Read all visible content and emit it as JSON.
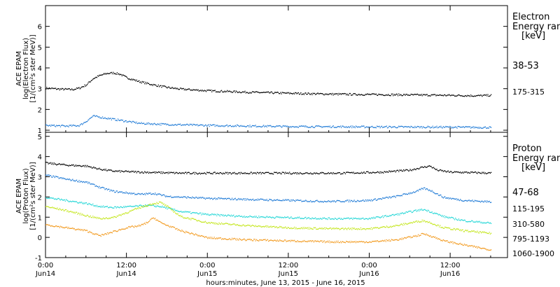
{
  "chart_data": {
    "type": "scatter",
    "x_axis": {
      "label": "hours:minutes, June 13, 2015 - June 16, 2015",
      "tick_hours": [
        0,
        12,
        24,
        36,
        48,
        60
      ],
      "tick_times": [
        "0:00",
        "12:00",
        "0:00",
        "12:00",
        "0:00",
        "12:00"
      ],
      "tick_dates": [
        "Jun14",
        "Jun14",
        "Jun15",
        "Jun15",
        "Jun16",
        "Jun16"
      ],
      "range_hours": [
        0,
        68.5
      ]
    },
    "panels": [
      {
        "id": "electron",
        "ylabel": [
          "ACE EPAM",
          "log(Electron Flux)",
          "[1/(cm²s ster MeV)]"
        ],
        "ylim": [
          0.9,
          7.0
        ],
        "yticks": [
          1,
          2,
          3,
          4,
          5,
          6
        ],
        "legend_title": [
          "Electron",
          "Energy ran",
          "[keV]"
        ],
        "series": [
          {
            "name": "38-53",
            "color": "#000000",
            "points": [
              [
                0,
                3.05
              ],
              [
                2,
                3.0
              ],
              [
                4,
                2.98
              ],
              [
                5,
                3.05
              ],
              [
                6,
                3.2
              ],
              [
                7,
                3.5
              ],
              [
                8,
                3.65
              ],
              [
                9,
                3.75
              ],
              [
                10,
                3.78
              ],
              [
                11,
                3.72
              ],
              [
                12,
                3.55
              ],
              [
                13,
                3.45
              ],
              [
                14,
                3.35
              ],
              [
                16,
                3.2
              ],
              [
                18,
                3.08
              ],
              [
                20,
                3.0
              ],
              [
                24,
                2.92
              ],
              [
                30,
                2.85
              ],
              [
                36,
                2.8
              ],
              [
                42,
                2.76
              ],
              [
                48,
                2.74
              ],
              [
                54,
                2.72
              ],
              [
                60,
                2.7
              ],
              [
                64,
                2.68
              ],
              [
                66,
                2.7
              ]
            ]
          },
          {
            "name": "175-315",
            "color": "#1e7ad6",
            "points": [
              [
                0,
                1.25
              ],
              [
                3,
                1.22
              ],
              [
                5,
                1.25
              ],
              [
                6,
                1.45
              ],
              [
                7,
                1.7
              ],
              [
                8,
                1.65
              ],
              [
                10,
                1.55
              ],
              [
                12,
                1.45
              ],
              [
                14,
                1.35
              ],
              [
                18,
                1.3
              ],
              [
                24,
                1.25
              ],
              [
                36,
                1.2
              ],
              [
                48,
                1.18
              ],
              [
                60,
                1.17
              ],
              [
                66,
                1.15
              ]
            ]
          }
        ]
      },
      {
        "id": "proton",
        "ylabel": [
          "ACE EPAM",
          "log(Proton Flux)",
          "[1/(cm²s ster MeV)]"
        ],
        "ylim": [
          -1.0,
          5.2
        ],
        "yticks": [
          -1,
          0,
          1,
          2,
          3,
          4,
          5
        ],
        "legend_title": [
          "Proton",
          "Energy ran",
          "[keV]"
        ],
        "series": [
          {
            "name": "47-68",
            "color": "#000000",
            "points": [
              [
                0,
                3.7
              ],
              [
                3,
                3.6
              ],
              [
                6,
                3.55
              ],
              [
                8,
                3.4
              ],
              [
                10,
                3.3
              ],
              [
                14,
                3.25
              ],
              [
                20,
                3.2
              ],
              [
                28,
                3.2
              ],
              [
                36,
                3.2
              ],
              [
                44,
                3.2
              ],
              [
                50,
                3.25
              ],
              [
                54,
                3.35
              ],
              [
                56,
                3.5
              ],
              [
                57,
                3.55
              ],
              [
                58,
                3.35
              ],
              [
                60,
                3.25
              ],
              [
                64,
                3.22
              ],
              [
                66,
                3.2
              ]
            ]
          },
          {
            "name": "115-195",
            "color": "#1e7ad6",
            "points": [
              [
                0,
                3.1
              ],
              [
                3,
                2.9
              ],
              [
                6,
                2.75
              ],
              [
                8,
                2.5
              ],
              [
                10,
                2.3
              ],
              [
                14,
                2.15
              ],
              [
                16,
                2.2
              ],
              [
                18,
                2.05
              ],
              [
                24,
                1.95
              ],
              [
                30,
                1.9
              ],
              [
                36,
                1.85
              ],
              [
                42,
                1.8
              ],
              [
                48,
                1.85
              ],
              [
                52,
                2.05
              ],
              [
                55,
                2.3
              ],
              [
                56,
                2.45
              ],
              [
                57,
                2.35
              ],
              [
                59,
                2.0
              ],
              [
                62,
                1.85
              ],
              [
                66,
                1.78
              ]
            ]
          },
          {
            "name": "310-580",
            "color": "#22d6d6",
            "points": [
              [
                0,
                2.0
              ],
              [
                3,
                1.85
              ],
              [
                6,
                1.7
              ],
              [
                8,
                1.55
              ],
              [
                10,
                1.5
              ],
              [
                13,
                1.55
              ],
              [
                15,
                1.6
              ],
              [
                17,
                1.55
              ],
              [
                20,
                1.3
              ],
              [
                24,
                1.15
              ],
              [
                30,
                1.05
              ],
              [
                36,
                1.0
              ],
              [
                42,
                0.95
              ],
              [
                48,
                0.95
              ],
              [
                52,
                1.15
              ],
              [
                55,
                1.35
              ],
              [
                56,
                1.4
              ],
              [
                57,
                1.3
              ],
              [
                59,
                1.05
              ],
              [
                62,
                0.85
              ],
              [
                66,
                0.72
              ]
            ]
          },
          {
            "name": "795-1193",
            "color": "#c4e61c",
            "points": [
              [
                0,
                1.55
              ],
              [
                3,
                1.35
              ],
              [
                6,
                1.1
              ],
              [
                8,
                0.95
              ],
              [
                10,
                1.0
              ],
              [
                12,
                1.25
              ],
              [
                14,
                1.5
              ],
              [
                16,
                1.7
              ],
              [
                17,
                1.75
              ],
              [
                18,
                1.55
              ],
              [
                20,
                1.05
              ],
              [
                24,
                0.75
              ],
              [
                30,
                0.6
              ],
              [
                36,
                0.5
              ],
              [
                42,
                0.45
              ],
              [
                48,
                0.45
              ],
              [
                52,
                0.6
              ],
              [
                55,
                0.8
              ],
              [
                56,
                0.85
              ],
              [
                57,
                0.75
              ],
              [
                59,
                0.5
              ],
              [
                62,
                0.35
              ],
              [
                66,
                0.22
              ]
            ]
          },
          {
            "name": "1060-1900",
            "color": "#f29a1e",
            "points": [
              [
                0,
                0.65
              ],
              [
                3,
                0.5
              ],
              [
                6,
                0.35
              ],
              [
                8,
                0.1
              ],
              [
                10,
                0.3
              ],
              [
                12,
                0.5
              ],
              [
                14,
                0.6
              ],
              [
                15,
                0.75
              ],
              [
                16,
                1.0
              ],
              [
                17,
                0.75
              ],
              [
                20,
                0.35
              ],
              [
                24,
                0.0
              ],
              [
                30,
                -0.1
              ],
              [
                36,
                -0.15
              ],
              [
                42,
                -0.2
              ],
              [
                48,
                -0.2
              ],
              [
                52,
                -0.1
              ],
              [
                55,
                0.1
              ],
              [
                56,
                0.2
              ],
              [
                57,
                0.1
              ],
              [
                59,
                -0.15
              ],
              [
                62,
                -0.35
              ],
              [
                66,
                -0.6
              ]
            ]
          }
        ]
      }
    ]
  }
}
